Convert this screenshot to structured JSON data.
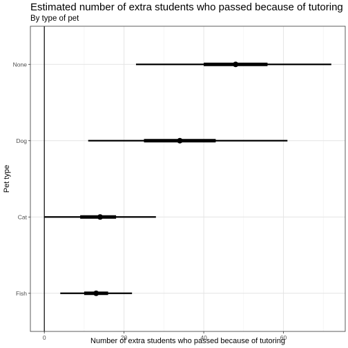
{
  "chart_data": {
    "type": "scatter",
    "title": "Estimated number of extra students who passed because of tutoring",
    "subtitle": "By type of pet",
    "xlabel": "Number of extra students who passed because of tutoring",
    "ylabel": "Pet type",
    "xlim": [
      -3.5,
      75.5
    ],
    "xticks": [
      0,
      20,
      40,
      60
    ],
    "grid": true,
    "reference_line_x": 0,
    "categories": [
      "None",
      "Dog",
      "Cat",
      "Fish"
    ],
    "series": [
      {
        "points": [
          {
            "category": "None",
            "estimate": 48,
            "inner": [
              40,
              56
            ],
            "outer": [
              23,
              72
            ]
          },
          {
            "category": "Dog",
            "estimate": 34,
            "inner": [
              25,
              43
            ],
            "outer": [
              11,
              61
            ]
          },
          {
            "category": "Cat",
            "estimate": 14,
            "inner": [
              9,
              18
            ],
            "outer": [
              0,
              28
            ]
          },
          {
            "category": "Fish",
            "estimate": 13,
            "inner": [
              10,
              16
            ],
            "outer": [
              4,
              22
            ]
          }
        ]
      }
    ]
  }
}
